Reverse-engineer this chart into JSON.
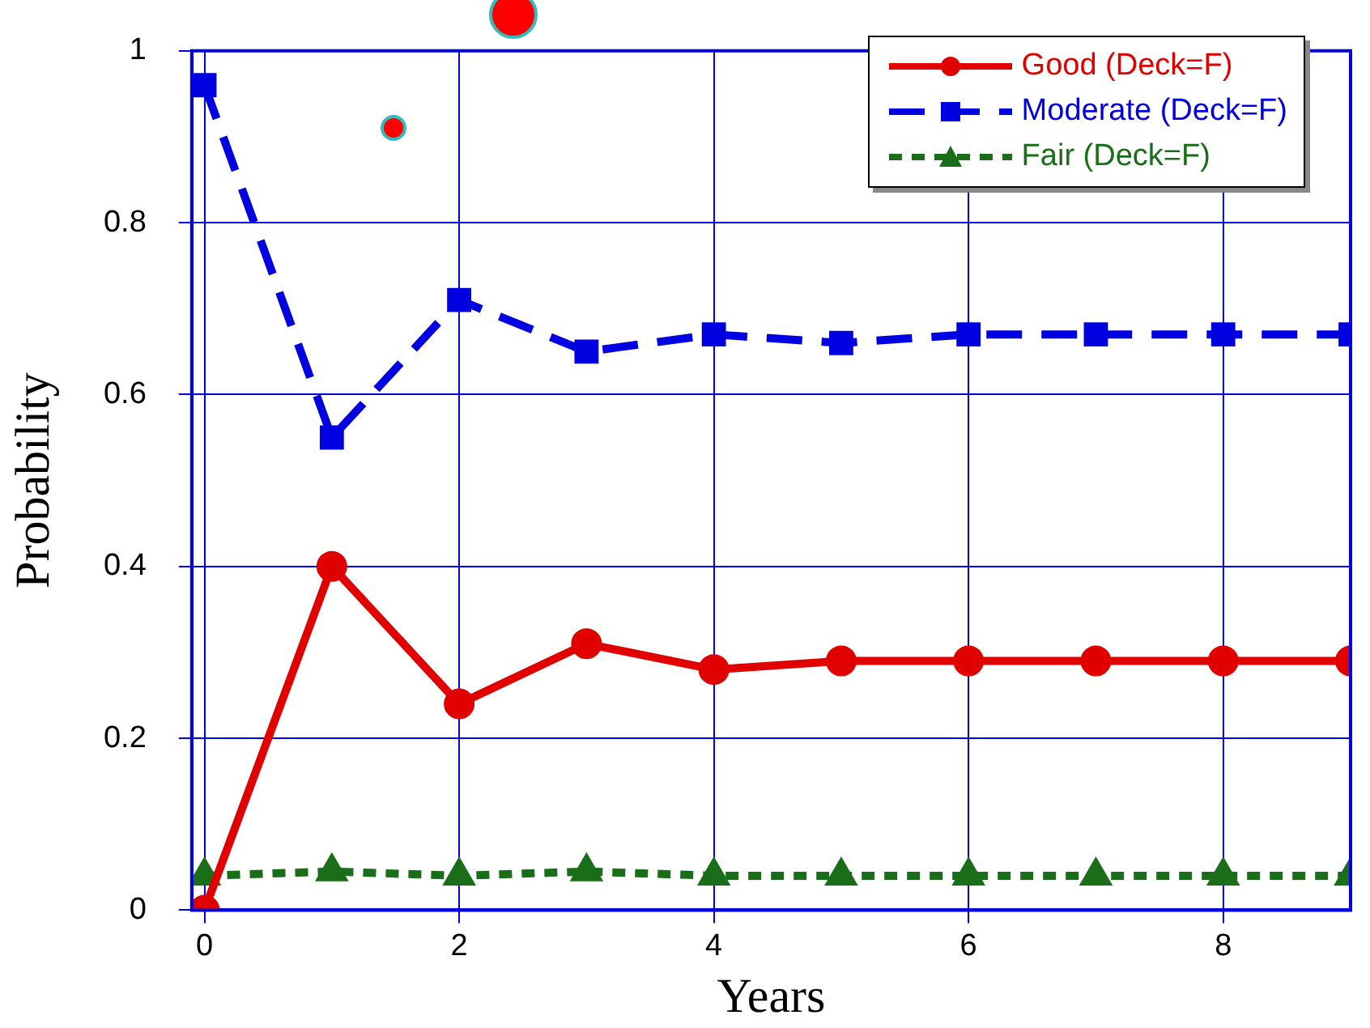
{
  "chart_data": {
    "type": "line",
    "xlabel": "Years",
    "ylabel": "Probability",
    "x": [
      0,
      1,
      2,
      3,
      4,
      5,
      6,
      7,
      8,
      9
    ],
    "series": [
      {
        "name": "Good (Deck=F)",
        "color": "#e00000",
        "line_style": "solid",
        "marker": "circle",
        "values": [
          0,
          0.4,
          0.24,
          0.31,
          0.28,
          0.29,
          0.29,
          0.29,
          0.29,
          0.29
        ]
      },
      {
        "name": "Moderate (Deck=F)",
        "color": "#0000e0",
        "line_style": "dashed",
        "marker": "square",
        "values": [
          0.96,
          0.55,
          0.71,
          0.65,
          0.67,
          0.66,
          0.67,
          0.67,
          0.67,
          0.67
        ]
      },
      {
        "name": "Fair (Deck=F)",
        "color": "#1a6e1a",
        "line_style": "dotted",
        "marker": "triangle",
        "values": [
          0.04,
          0.045,
          0.04,
          0.045,
          0.04,
          0.04,
          0.04,
          0.04,
          0.04,
          0.04
        ]
      }
    ],
    "xlim": [
      -0.1,
      9
    ],
    "xticks": [
      0,
      2,
      4,
      6,
      8
    ],
    "ylim": [
      0,
      1
    ],
    "yticks": [
      0,
      0.2,
      0.4,
      0.6,
      0.8,
      1
    ],
    "grid": true,
    "legend": "top right"
  }
}
